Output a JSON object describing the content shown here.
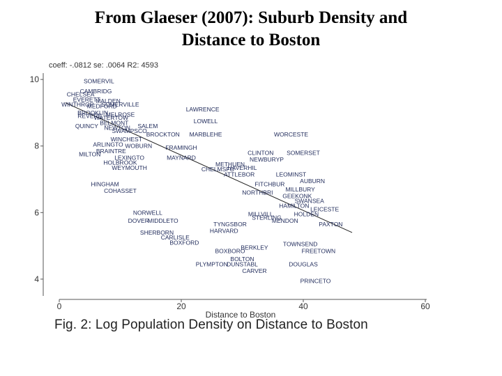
{
  "title_lines": [
    "From Glaeser (2007): Suburb Density and",
    "Distance to Boston"
  ],
  "stats_text": "coeff: -.0812 se: .0064 R2: 4593",
  "caption": "Fig. 2: Log Population Density on Distance to Boston",
  "colors": {
    "axis": "#555555",
    "point_label": "#1f2a5a",
    "fit_line": "#222222"
  },
  "chart_data": {
    "type": "scatter",
    "title": "",
    "xlabel": "Distance to Boston",
    "ylabel": "",
    "xlim": [
      0,
      60
    ],
    "ylim": [
      3.6,
      10.4
    ],
    "xticks": [
      0,
      20,
      40,
      60
    ],
    "yticks": [
      4,
      6,
      8,
      10
    ],
    "grid": false,
    "fit_line": {
      "x": [
        1,
        48
      ],
      "y": [
        9.3,
        5.4
      ]
    },
    "points": [
      {
        "label": "SOMERVIL",
        "x": 6.5,
        "y": 9.95
      },
      {
        "label": "CAMBRIDG",
        "x": 6.0,
        "y": 9.65
      },
      {
        "label": "CHELSEA",
        "x": 3.5,
        "y": 9.55
      },
      {
        "label": "EVERETT",
        "x": 4.5,
        "y": 9.4
      },
      {
        "label": "MALDEN",
        "x": 8.0,
        "y": 9.35
      },
      {
        "label": "WINTHROP",
        "x": 3.0,
        "y": 9.25
      },
      {
        "label": "MEDFORD",
        "x": 7.0,
        "y": 9.2
      },
      {
        "label": "SOMERVILLE",
        "x": 10.0,
        "y": 9.25
      },
      {
        "label": "BROOKLIN",
        "x": 5.5,
        "y": 9.0
      },
      {
        "label": "MELROSE",
        "x": 10.0,
        "y": 8.95
      },
      {
        "label": "REVERE",
        "x": 5.0,
        "y": 8.9
      },
      {
        "label": "WATERTOW",
        "x": 8.5,
        "y": 8.85
      },
      {
        "label": "BELMONT",
        "x": 9.0,
        "y": 8.7
      },
      {
        "label": "QUINCY",
        "x": 4.5,
        "y": 8.6
      },
      {
        "label": "NEWTON",
        "x": 9.5,
        "y": 8.55
      },
      {
        "label": "SALEM",
        "x": 14.5,
        "y": 8.6
      },
      {
        "label": "SWAMPSCO",
        "x": 11.5,
        "y": 8.45
      },
      {
        "label": "BROCKTON",
        "x": 17.0,
        "y": 8.35
      },
      {
        "label": "WINCHEST",
        "x": 11.0,
        "y": 8.2
      },
      {
        "label": "ARLINGTO",
        "x": 8.0,
        "y": 8.05
      },
      {
        "label": "WOBURN",
        "x": 13.0,
        "y": 8.0
      },
      {
        "label": "FRAMINGH",
        "x": 20.0,
        "y": 7.95
      },
      {
        "label": "BRAINTRE",
        "x": 8.5,
        "y": 7.85
      },
      {
        "label": "MILTON",
        "x": 5.0,
        "y": 7.75
      },
      {
        "label": "LEXINGTO",
        "x": 11.5,
        "y": 7.65
      },
      {
        "label": "MAYNARD",
        "x": 20.0,
        "y": 7.65
      },
      {
        "label": "HOLBROOK",
        "x": 10.0,
        "y": 7.5
      },
      {
        "label": "WEYMOUTH",
        "x": 11.5,
        "y": 7.35
      },
      {
        "label": "HINGHAM",
        "x": 7.5,
        "y": 6.85
      },
      {
        "label": "COHASSET",
        "x": 10.0,
        "y": 6.65
      },
      {
        "label": "LAWRENCE",
        "x": 23.5,
        "y": 9.1
      },
      {
        "label": "LOWELL",
        "x": 24.0,
        "y": 8.75
      },
      {
        "label": "MARBLEHE",
        "x": 24.0,
        "y": 8.35
      },
      {
        "label": "WORCESTE",
        "x": 38.0,
        "y": 8.35
      },
      {
        "label": "CLINTON",
        "x": 33.0,
        "y": 7.8
      },
      {
        "label": "SOMERSET",
        "x": 40.0,
        "y": 7.8
      },
      {
        "label": "NEWBURYP",
        "x": 34.0,
        "y": 7.6
      },
      {
        "label": "METHUEN",
        "x": 28.0,
        "y": 7.45
      },
      {
        "label": "HAVERHIL",
        "x": 30.0,
        "y": 7.35
      },
      {
        "label": "CHELMSFO",
        "x": 26.0,
        "y": 7.3
      },
      {
        "label": "ATTLEBOR",
        "x": 29.5,
        "y": 7.15
      },
      {
        "label": "LEOMINST",
        "x": 38.0,
        "y": 7.15
      },
      {
        "label": "AUBURN",
        "x": 41.5,
        "y": 6.95
      },
      {
        "label": "FITCHBUR",
        "x": 34.5,
        "y": 6.85
      },
      {
        "label": "MILLBURY",
        "x": 39.5,
        "y": 6.7
      },
      {
        "label": "NORTHBRI",
        "x": 32.5,
        "y": 6.6
      },
      {
        "label": "GEEKONK",
        "x": 39.0,
        "y": 6.5
      },
      {
        "label": "SWANSEA",
        "x": 41.0,
        "y": 6.35
      },
      {
        "label": "HAMILTON",
        "x": 38.5,
        "y": 6.2
      },
      {
        "label": "HOLDEN",
        "x": 40.5,
        "y": 5.95
      },
      {
        "label": "LEICESTE",
        "x": 43.5,
        "y": 6.1
      },
      {
        "label": "PAXTON",
        "x": 44.5,
        "y": 5.65
      },
      {
        "label": "MILLVILL",
        "x": 33.0,
        "y": 5.95
      },
      {
        "label": "STERLING",
        "x": 34.0,
        "y": 5.85
      },
      {
        "label": "MENDON",
        "x": 37.0,
        "y": 5.75
      },
      {
        "label": "TYNGSBOR",
        "x": 28.0,
        "y": 5.65
      },
      {
        "label": "NORWELL",
        "x": 14.5,
        "y": 6.0
      },
      {
        "label": "DOVER",
        "x": 13.0,
        "y": 5.75
      },
      {
        "label": "MIDDLETO",
        "x": 17.0,
        "y": 5.75
      },
      {
        "label": "SHERBORN",
        "x": 16.0,
        "y": 5.4
      },
      {
        "label": "CARLISLE",
        "x": 19.0,
        "y": 5.25
      },
      {
        "label": "BOXFORD",
        "x": 20.5,
        "y": 5.1
      },
      {
        "label": "HARVARD",
        "x": 27.0,
        "y": 5.45
      },
      {
        "label": "BOXBORO",
        "x": 28.0,
        "y": 4.85
      },
      {
        "label": "BOLTON",
        "x": 30.0,
        "y": 4.6
      },
      {
        "label": "BERKLEY",
        "x": 32.0,
        "y": 4.95
      },
      {
        "label": "PLYMPTON",
        "x": 25.0,
        "y": 4.45
      },
      {
        "label": "DUNSTABL",
        "x": 30.0,
        "y": 4.45
      },
      {
        "label": "CARVER",
        "x": 32.0,
        "y": 4.25
      },
      {
        "label": "DOUGLAS",
        "x": 40.0,
        "y": 4.45
      },
      {
        "label": "TOWNSEND",
        "x": 39.5,
        "y": 5.05
      },
      {
        "label": "FREETOWN",
        "x": 42.5,
        "y": 4.85
      },
      {
        "label": "PRINCETO",
        "x": 42.0,
        "y": 3.95
      }
    ]
  }
}
